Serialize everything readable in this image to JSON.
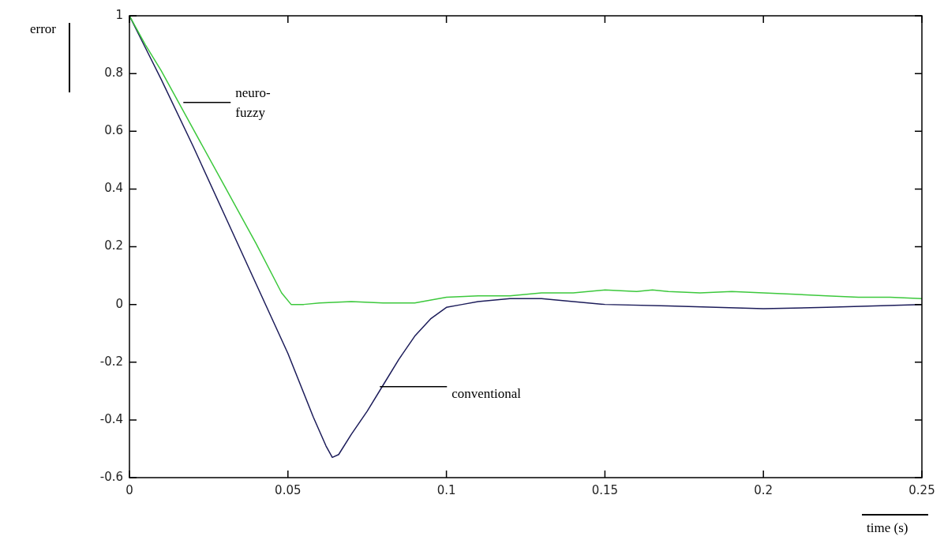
{
  "chart_data": {
    "type": "line",
    "xlabel": "time (s)",
    "ylabel": "error",
    "xlim": [
      0,
      0.25
    ],
    "ylim": [
      -0.6,
      1
    ],
    "xticks": [
      0,
      0.05,
      0.1,
      0.15,
      0.2,
      0.25
    ],
    "yticks": [
      -0.6,
      -0.4,
      -0.2,
      0,
      0.2,
      0.4,
      0.6,
      0.8,
      1
    ],
    "grid": false,
    "legend": false,
    "marker": "none",
    "line_style": "solid",
    "series": [
      {
        "color": "#3cc83c",
        "x": [
          0,
          0.005,
          0.01,
          0.02,
          0.03,
          0.04,
          0.048,
          0.051,
          0.055,
          0.06,
          0.07,
          0.08,
          0.09,
          0.1,
          0.11,
          0.12,
          0.13,
          0.14,
          0.15,
          0.16,
          0.165,
          0.17,
          0.18,
          0.19,
          0.2,
          0.21,
          0.22,
          0.23,
          0.24,
          0.25
        ],
        "values": [
          1,
          0.9,
          0.81,
          0.61,
          0.41,
          0.21,
          0.04,
          0.0,
          0.0,
          0.005,
          0.01,
          0.005,
          0.005,
          0.025,
          0.03,
          0.03,
          0.04,
          0.04,
          0.05,
          0.045,
          0.05,
          0.045,
          0.04,
          0.045,
          0.04,
          0.035,
          0.03,
          0.025,
          0.025,
          0.02
        ]
      },
      {
        "color": "#1c1c5a",
        "x": [
          0,
          0.005,
          0.01,
          0.02,
          0.03,
          0.04,
          0.05,
          0.058,
          0.062,
          0.064,
          0.066,
          0.07,
          0.075,
          0.08,
          0.085,
          0.09,
          0.095,
          0.1,
          0.105,
          0.11,
          0.12,
          0.13,
          0.14,
          0.15,
          0.17,
          0.2,
          0.22,
          0.25
        ],
        "values": [
          1,
          0.89,
          0.78,
          0.55,
          0.31,
          0.07,
          -0.17,
          -0.39,
          -0.49,
          -0.53,
          -0.52,
          -0.45,
          -0.37,
          -0.28,
          -0.19,
          -0.11,
          -0.05,
          -0.01,
          0.0,
          0.01,
          0.02,
          0.02,
          0.01,
          0.0,
          -0.005,
          -0.015,
          -0.01,
          0.0
        ]
      }
    ],
    "annotations": [
      {
        "text": "neuro-fuzzy",
        "x": 0.017,
        "y": 0.7
      },
      {
        "text": "conventional",
        "x": 0.079,
        "y": -0.285
      }
    ]
  }
}
